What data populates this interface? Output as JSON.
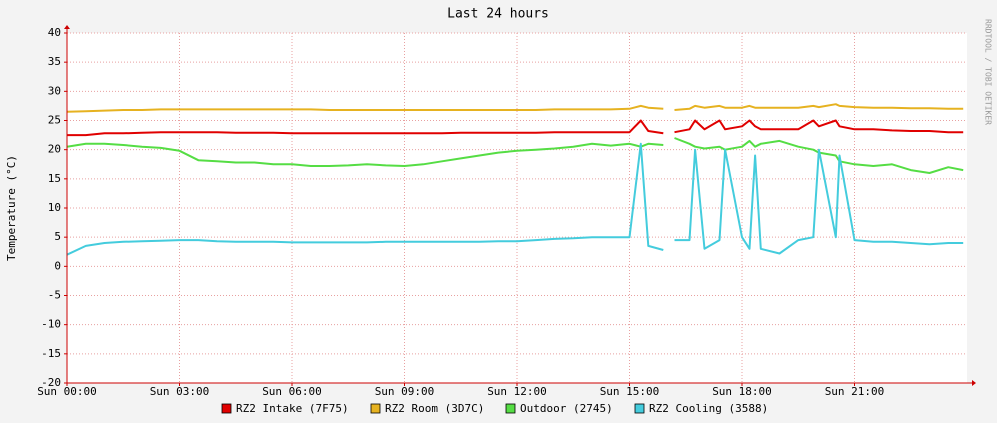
{
  "chart_data": {
    "type": "line",
    "title": "Last 24 hours",
    "y_label": "Temperature (°C)",
    "watermark": "RRDTOOL / TOBI OETIKER",
    "xlim": [
      0,
      24
    ],
    "xticks": [
      {
        "value": 0,
        "label": "Sun 00:00"
      },
      {
        "value": 3,
        "label": "Sun 03:00"
      },
      {
        "value": 6,
        "label": "Sun 06:00"
      },
      {
        "value": 9,
        "label": "Sun 09:00"
      },
      {
        "value": 12,
        "label": "Sun 12:00"
      },
      {
        "value": 15,
        "label": "Sun 15:00"
      },
      {
        "value": 18,
        "label": "Sun 18:00"
      },
      {
        "value": 21,
        "label": "Sun 21:00"
      }
    ],
    "ylim": [
      -20,
      40
    ],
    "yticks": [
      -20,
      -15,
      -10,
      -5,
      0,
      5,
      10,
      15,
      20,
      25,
      30,
      35,
      40
    ],
    "grid": true,
    "x": [
      0,
      0.5,
      1,
      1.5,
      2,
      2.5,
      3,
      3.5,
      4,
      4.5,
      5,
      5.5,
      6,
      6.5,
      7,
      7.5,
      8,
      8.5,
      9,
      9.5,
      10,
      10.5,
      11,
      11.5,
      12,
      12.5,
      13,
      13.5,
      14,
      14.5,
      15,
      15.3,
      15.5,
      15.9,
      16.0,
      16.2,
      16.6,
      16.75,
      17,
      17.4,
      17.55,
      18,
      18.2,
      18.35,
      18.5,
      19,
      19.5,
      19.9,
      20.05,
      20.5,
      20.6,
      21,
      21.5,
      22,
      22.5,
      23,
      23.5,
      23.9
    ],
    "series": [
      {
        "name": "RZ2 Intake (7F75)",
        "color": "#e00000",
        "values": [
          22.5,
          22.5,
          22.8,
          22.8,
          22.9,
          23,
          23,
          23,
          23,
          22.9,
          22.9,
          22.9,
          22.8,
          22.8,
          22.8,
          22.8,
          22.8,
          22.8,
          22.8,
          22.8,
          22.8,
          22.9,
          22.9,
          22.9,
          22.9,
          22.9,
          23,
          23,
          23,
          23,
          23,
          25,
          23.2,
          22.8,
          null,
          23,
          23.5,
          25,
          23.5,
          25,
          23.5,
          24,
          25,
          24,
          23.5,
          23.5,
          23.5,
          25,
          24,
          25,
          24,
          23.5,
          23.5,
          23.3,
          23.2,
          23.2,
          23,
          23
        ]
      },
      {
        "name": "RZ2 Room (3D7C)",
        "color": "#e6b220",
        "values": [
          26.5,
          26.6,
          26.7,
          26.8,
          26.8,
          26.9,
          26.9,
          26.9,
          26.9,
          26.9,
          26.9,
          26.9,
          26.9,
          26.9,
          26.8,
          26.8,
          26.8,
          26.8,
          26.8,
          26.8,
          26.8,
          26.8,
          26.8,
          26.8,
          26.8,
          26.8,
          26.9,
          26.9,
          26.9,
          26.9,
          27,
          27.5,
          27.2,
          27,
          null,
          26.8,
          27,
          27.5,
          27.2,
          27.5,
          27.2,
          27.2,
          27.5,
          27.2,
          27.2,
          27.2,
          27.2,
          27.5,
          27.3,
          27.8,
          27.5,
          27.3,
          27.2,
          27.2,
          27.1,
          27.1,
          27,
          27
        ]
      },
      {
        "name": "Outdoor (2745)",
        "color": "#55dd44",
        "values": [
          20.5,
          21,
          21,
          20.8,
          20.5,
          20.3,
          19.8,
          18.2,
          18,
          17.8,
          17.8,
          17.5,
          17.5,
          17.2,
          17.2,
          17.3,
          17.5,
          17.3,
          17.2,
          17.5,
          18,
          18.5,
          19,
          19.5,
          19.8,
          20,
          20.2,
          20.5,
          21,
          20.7,
          21,
          20.5,
          21,
          20.8,
          null,
          22,
          21,
          20.5,
          20.2,
          20.5,
          20,
          20.5,
          21.5,
          20.5,
          21,
          21.5,
          20.5,
          20,
          19.5,
          19,
          18,
          17.5,
          17.2,
          17.5,
          16.5,
          16,
          17,
          16.5
        ]
      },
      {
        "name": "RZ2 Cooling (3588)",
        "color": "#44ccdd",
        "values": [
          2,
          3.5,
          4,
          4.2,
          4.3,
          4.4,
          4.5,
          4.5,
          4.3,
          4.2,
          4.2,
          4.2,
          4.1,
          4.1,
          4.1,
          4.1,
          4.1,
          4.2,
          4.2,
          4.2,
          4.2,
          4.2,
          4.2,
          4.3,
          4.3,
          4.5,
          4.7,
          4.8,
          5,
          5,
          5,
          21,
          3.5,
          2.8,
          null,
          4.5,
          4.5,
          20,
          3,
          4.5,
          20,
          5,
          3,
          19,
          3,
          2.2,
          4.5,
          5,
          20,
          5,
          19,
          4.5,
          4.2,
          4.2,
          4,
          3.8,
          4,
          4
        ]
      }
    ]
  }
}
